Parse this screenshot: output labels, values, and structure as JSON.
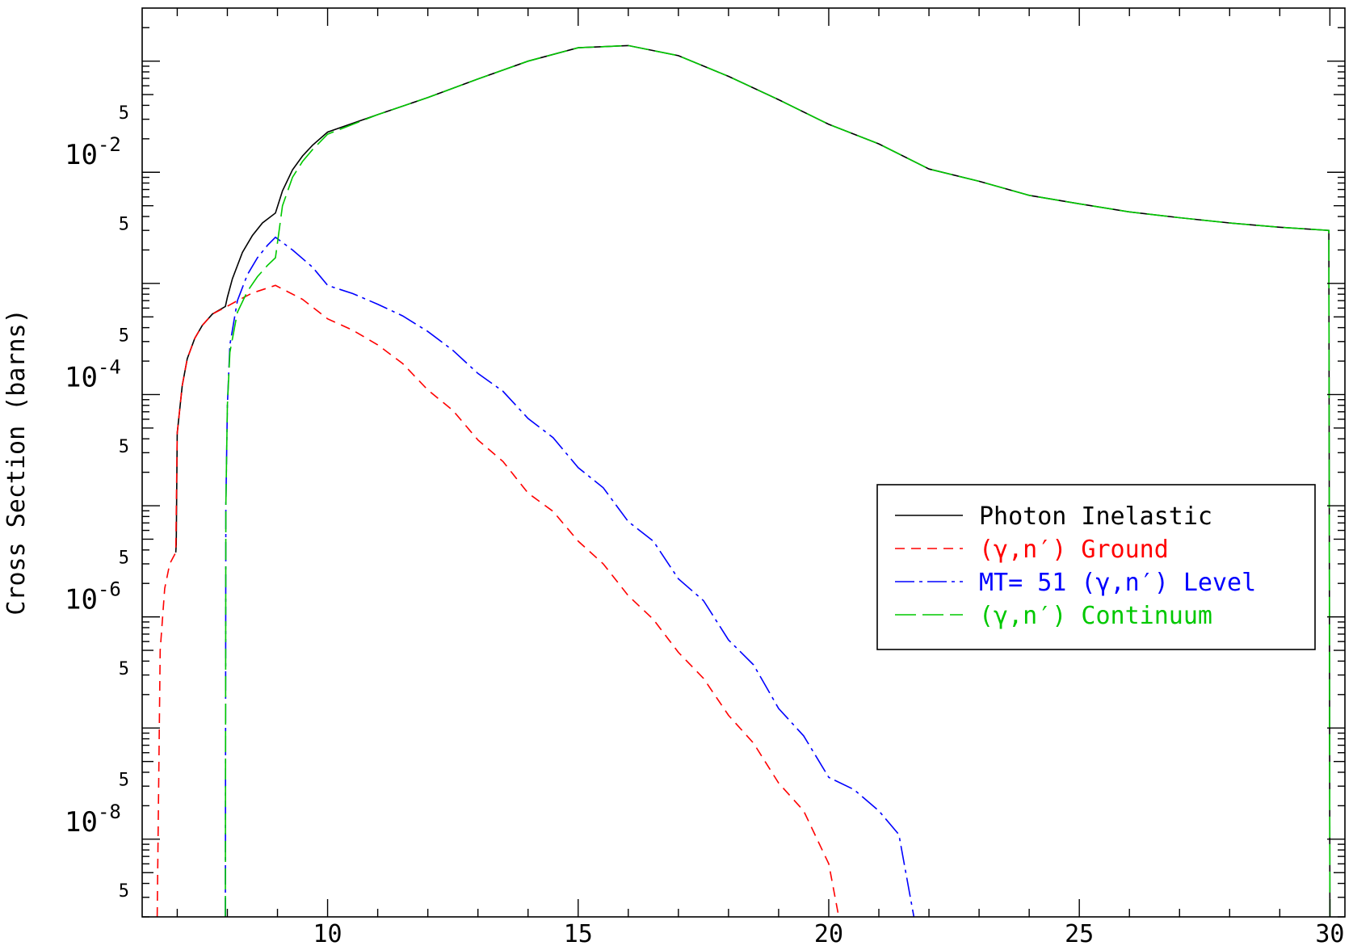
{
  "chart_data": {
    "type": "line",
    "title": "",
    "xlabel": "",
    "ylabel": "Cross Section (barns)",
    "xlim": [
      6.3,
      30.3
    ],
    "ylim": [
      2e-09,
      0.3
    ],
    "yscale": "log",
    "grid": false,
    "legend_position": "center-right",
    "x_ticks": [
      10,
      15,
      20,
      25,
      30
    ],
    "x_tick_labels": [
      "10",
      "15",
      "20",
      "25",
      "30"
    ],
    "y_major_ticks": [
      {
        "value": 0.01,
        "base": "10",
        "exp": "-2"
      },
      {
        "value": 0.0001,
        "base": "10",
        "exp": "-4"
      },
      {
        "value": 1e-06,
        "base": "10",
        "exp": "-6"
      },
      {
        "value": 1e-08,
        "base": "10",
        "exp": "-8"
      }
    ],
    "y_minor_label": "5",
    "series": [
      {
        "name": "Photon Inelastic",
        "color": "#000000",
        "dash": "solid",
        "x": [
          6.97,
          6.98,
          7.0,
          7.1,
          7.2,
          7.35,
          7.5,
          7.7,
          7.96,
          8.0,
          8.1,
          8.3,
          8.5,
          8.7,
          8.96,
          9.1,
          9.3,
          9.5,
          9.7,
          10.0,
          11.0,
          12.0,
          13.0,
          14.0,
          15.0,
          16.0,
          17.0,
          18.0,
          19.0,
          20.0,
          21.0,
          22.0,
          23.0,
          24.0,
          25.0,
          26.0,
          27.0,
          28.0,
          29.0,
          29.98,
          30.0
        ],
        "y": [
          3.8e-06,
          4.5e-06,
          4.5e-05,
          0.00012,
          0.00021,
          0.00032,
          0.00042,
          0.00053,
          0.00062,
          0.00075,
          0.0011,
          0.0019,
          0.0027,
          0.0035,
          0.0043,
          0.0068,
          0.0105,
          0.014,
          0.0175,
          0.023,
          0.033,
          0.047,
          0.069,
          0.1,
          0.132,
          0.138,
          0.112,
          0.073,
          0.045,
          0.027,
          0.018,
          0.0107,
          0.0083,
          0.0062,
          0.0052,
          0.0044,
          0.0039,
          0.0035,
          0.0032,
          0.003,
          2e-09
        ]
      },
      {
        "name": "(γ,n′) Ground",
        "color": "#ff0000",
        "dash": "12,8",
        "x": [
          6.6,
          6.66,
          6.75,
          6.85,
          6.97,
          7.0,
          7.1,
          7.2,
          7.35,
          7.5,
          7.7,
          7.96,
          8.2,
          8.5,
          8.96,
          9.5,
          10.0,
          10.5,
          11.0,
          11.5,
          12.0,
          12.5,
          13.0,
          13.5,
          14.0,
          14.5,
          15.0,
          15.5,
          16.0,
          16.5,
          17.0,
          17.5,
          18.0,
          18.5,
          19.0,
          19.5,
          20.0,
          20.2
        ],
        "y": [
          2e-09,
          5e-07,
          1.8e-06,
          3e-06,
          3.8e-06,
          4.5e-05,
          0.00012,
          0.00021,
          0.00032,
          0.00042,
          0.00053,
          0.00061,
          0.0007,
          0.00082,
          0.00096,
          0.00072,
          0.00048,
          0.00038,
          0.00028,
          0.00019,
          0.00011,
          7.2e-05,
          3.9e-05,
          2.5e-05,
          1.3e-05,
          8.9e-06,
          4.8e-06,
          3e-06,
          1.55e-06,
          9.5e-07,
          4.8e-07,
          2.8e-07,
          1.3e-07,
          7.3e-08,
          3.2e-08,
          1.8e-08,
          6e-09,
          2e-09
        ]
      },
      {
        "name": "MT= 51 (γ,n′) Level",
        "color": "#0000ff",
        "dash": "24,6,4,6",
        "x": [
          7.96,
          7.97,
          8.0,
          8.05,
          8.2,
          8.4,
          8.6,
          8.8,
          8.96,
          9.3,
          9.7,
          10.0,
          10.5,
          11.0,
          11.5,
          12.0,
          12.5,
          13.0,
          13.5,
          14.0,
          14.5,
          15.0,
          15.5,
          16.0,
          16.5,
          17.0,
          17.5,
          18.0,
          18.5,
          19.0,
          19.5,
          20.0,
          20.5,
          21.0,
          21.4,
          21.7
        ],
        "y": [
          2e-09,
          1e-05,
          8e-05,
          0.00028,
          0.0007,
          0.0012,
          0.0017,
          0.0022,
          0.0026,
          0.002,
          0.0014,
          0.00096,
          0.00081,
          0.00065,
          0.00051,
          0.00037,
          0.00025,
          0.000155,
          0.000107,
          6.1e-05,
          4.1e-05,
          2.2e-05,
          1.45e-05,
          7.2e-06,
          4.8e-06,
          2.2e-06,
          1.4e-06,
          6.2e-07,
          3.7e-07,
          1.5e-07,
          8.5e-08,
          3.6e-08,
          2.8e-08,
          1.8e-08,
          1.1e-08,
          2e-09
        ]
      },
      {
        "name": "(γ,n′) Continuum",
        "color": "#00c800",
        "dash": "26,8",
        "x": [
          7.96,
          7.97,
          8.0,
          8.05,
          8.2,
          8.4,
          8.6,
          8.8,
          8.96,
          9.1,
          9.3,
          9.5,
          9.7,
          10.0,
          11.0,
          12.0,
          13.0,
          14.0,
          15.0,
          16.0,
          17.0,
          18.0,
          19.0,
          20.0,
          21.0,
          22.0,
          23.0,
          24.0,
          25.0,
          26.0,
          27.0,
          28.0,
          29.0,
          29.98,
          30.0
        ],
        "y": [
          2e-09,
          1e-05,
          8e-05,
          0.00024,
          0.00055,
          0.00085,
          0.00115,
          0.00145,
          0.0017,
          0.005,
          0.009,
          0.0125,
          0.016,
          0.022,
          0.033,
          0.047,
          0.069,
          0.1,
          0.132,
          0.138,
          0.112,
          0.073,
          0.045,
          0.027,
          0.018,
          0.0107,
          0.0083,
          0.0062,
          0.0052,
          0.0044,
          0.0039,
          0.0035,
          0.0032,
          0.003,
          2e-09
        ]
      }
    ]
  }
}
